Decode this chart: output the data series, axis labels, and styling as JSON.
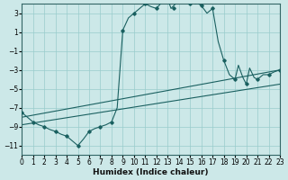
{
  "xlabel": "Humidex (Indice chaleur)",
  "bg_color": "#cce8e8",
  "grid_color": "#99cccc",
  "line_color": "#1a6060",
  "xlim": [
    0,
    23
  ],
  "ylim": [
    -12,
    4
  ],
  "yticks": [
    3,
    1,
    -1,
    -3,
    -5,
    -7,
    -9,
    -11
  ],
  "xticks": [
    0,
    1,
    2,
    3,
    4,
    5,
    6,
    7,
    8,
    9,
    10,
    11,
    12,
    13,
    14,
    15,
    16,
    17,
    18,
    19,
    20,
    21,
    22,
    23
  ],
  "curve_x": [
    0,
    0.5,
    1,
    1.5,
    2,
    2.5,
    3,
    3.5,
    4,
    4.5,
    5,
    5.5,
    6,
    6.5,
    7,
    7.5,
    8,
    8.5,
    9,
    9.5,
    10,
    10.5,
    11,
    11.5,
    12,
    12.5,
    13,
    13.3,
    13.7,
    14,
    14.5,
    15,
    15.5,
    16,
    16.5,
    17,
    17.5,
    18,
    18.5,
    19,
    19.3,
    19.7,
    20,
    20.3,
    20.7,
    21,
    21.5,
    22,
    22.5,
    23
  ],
  "curve_y": [
    -7.5,
    -8.0,
    -8.5,
    -8.8,
    -9.0,
    -9.3,
    -9.5,
    -9.8,
    -10.0,
    -10.5,
    -11.0,
    -10.3,
    -9.5,
    -9.2,
    -9.0,
    -8.8,
    -8.5,
    -7.0,
    1.2,
    2.5,
    3.0,
    3.5,
    4.0,
    3.7,
    3.5,
    4.2,
    4.5,
    3.5,
    4.0,
    4.5,
    4.2,
    4.0,
    4.2,
    3.8,
    3.0,
    3.5,
    0.0,
    -2.0,
    -3.5,
    -4.0,
    -2.5,
    -3.8,
    -4.5,
    -2.8,
    -3.8,
    -4.0,
    -3.5,
    -3.5,
    -3.2,
    -3.0
  ],
  "marker_x": [
    0,
    1,
    2,
    3,
    4,
    5,
    6,
    7,
    8,
    9,
    10,
    11,
    12,
    13,
    13.5,
    14,
    15,
    15.5,
    16,
    17,
    18,
    19,
    20,
    21,
    22,
    23
  ],
  "marker_y": [
    -7.5,
    -8.5,
    -9.0,
    -9.5,
    -10.0,
    -11.0,
    -9.5,
    -9.0,
    -8.5,
    1.2,
    3.0,
    4.0,
    3.5,
    4.5,
    3.5,
    4.5,
    4.0,
    4.2,
    3.8,
    3.5,
    -2.0,
    -4.0,
    -4.5,
    -4.0,
    -3.5,
    -3.0
  ],
  "line1_x": [
    0,
    23
  ],
  "line1_y": [
    -8.0,
    -3.0
  ],
  "line2_x": [
    0,
    23
  ],
  "line2_y": [
    -8.8,
    -4.5
  ]
}
